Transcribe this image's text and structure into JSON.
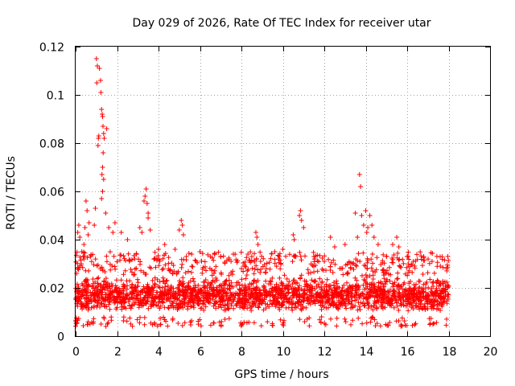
{
  "chart_data": {
    "type": "scatter",
    "title": "Day 029 of 2026, Rate Of TEC Index for receiver utar",
    "xlabel": "GPS time / hours",
    "ylabel": "ROTI / TECUs",
    "xlim": [
      0,
      20
    ],
    "ylim": [
      0,
      0.12
    ],
    "x_ticks": [
      0,
      2,
      4,
      6,
      8,
      10,
      12,
      14,
      16,
      18,
      20
    ],
    "x_tick_labels": [
      "0",
      "2",
      "4",
      "6",
      "8",
      "10",
      "12",
      "14",
      "16",
      "18",
      "20"
    ],
    "y_ticks": [
      0,
      0.02,
      0.04,
      0.06,
      0.08,
      0.1,
      0.12
    ],
    "y_tick_labels": [
      "0",
      "0.02",
      "0.04",
      "0.06",
      "0.08",
      "0.1",
      "0.12"
    ],
    "grid": true,
    "marker": "+",
    "color": "#ff0000",
    "series": [
      {
        "name": "ROTI",
        "data_range": [
          0,
          18
        ],
        "typical_band": [
          0.008,
          0.025
        ],
        "points": [
          [
            0.05,
            0.026
          ],
          [
            0.1,
            0.043
          ],
          [
            0.15,
            0.046
          ],
          [
            0.2,
            0.041
          ],
          [
            0.3,
            0.035
          ],
          [
            0.4,
            0.038
          ],
          [
            0.45,
            0.045
          ],
          [
            0.5,
            0.056
          ],
          [
            0.55,
            0.052
          ],
          [
            0.6,
            0.042
          ],
          [
            0.65,
            0.047
          ],
          [
            0.9,
            0.046
          ],
          [
            0.95,
            0.053
          ],
          [
            1.0,
            0.115
          ],
          [
            1.02,
            0.105
          ],
          [
            1.05,
            0.112
          ],
          [
            1.08,
            0.079
          ],
          [
            1.1,
            0.082
          ],
          [
            1.12,
            0.083
          ],
          [
            1.15,
            0.111
          ],
          [
            1.2,
            0.106
          ],
          [
            1.22,
            0.101
          ],
          [
            1.25,
            0.094
          ],
          [
            1.28,
            0.092
          ],
          [
            1.3,
            0.091
          ],
          [
            1.32,
            0.087
          ],
          [
            1.35,
            0.084
          ],
          [
            1.38,
            0.082
          ],
          [
            1.33,
            0.076
          ],
          [
            1.3,
            0.07
          ],
          [
            1.27,
            0.067
          ],
          [
            1.35,
            0.065
          ],
          [
            1.3,
            0.06
          ],
          [
            1.25,
            0.057
          ],
          [
            1.45,
            0.051
          ],
          [
            1.5,
            0.086
          ],
          [
            1.6,
            0.045
          ],
          [
            1.8,
            0.043
          ],
          [
            1.9,
            0.047
          ],
          [
            2.2,
            0.043
          ],
          [
            2.5,
            0.04
          ],
          [
            3.1,
            0.045
          ],
          [
            3.2,
            0.043
          ],
          [
            3.3,
            0.056
          ],
          [
            3.35,
            0.058
          ],
          [
            3.4,
            0.061
          ],
          [
            3.45,
            0.055
          ],
          [
            3.5,
            0.051
          ],
          [
            3.5,
            0.049
          ],
          [
            3.6,
            0.044
          ],
          [
            4.0,
            0.036
          ],
          [
            4.3,
            0.038
          ],
          [
            4.8,
            0.036
          ],
          [
            5.0,
            0.044
          ],
          [
            5.1,
            0.048
          ],
          [
            5.15,
            0.046
          ],
          [
            5.2,
            0.042
          ],
          [
            5.6,
            0.034
          ],
          [
            6.0,
            0.035
          ],
          [
            6.5,
            0.033
          ],
          [
            7.0,
            0.033
          ],
          [
            7.5,
            0.031
          ],
          [
            8.0,
            0.028
          ],
          [
            8.5,
            0.033
          ],
          [
            8.7,
            0.043
          ],
          [
            8.75,
            0.041
          ],
          [
            8.8,
            0.038
          ],
          [
            9.2,
            0.028
          ],
          [
            9.8,
            0.032
          ],
          [
            10.0,
            0.036
          ],
          [
            10.5,
            0.042
          ],
          [
            10.55,
            0.04
          ],
          [
            10.8,
            0.05
          ],
          [
            10.85,
            0.052
          ],
          [
            10.9,
            0.048
          ],
          [
            11.0,
            0.045
          ],
          [
            11.5,
            0.033
          ],
          [
            12.0,
            0.031
          ],
          [
            12.5,
            0.037
          ],
          [
            12.3,
            0.041
          ],
          [
            13.0,
            0.038
          ],
          [
            13.5,
            0.051
          ],
          [
            13.6,
            0.041
          ],
          [
            13.7,
            0.067
          ],
          [
            13.75,
            0.062
          ],
          [
            13.8,
            0.05
          ],
          [
            13.9,
            0.046
          ],
          [
            14.0,
            0.052
          ],
          [
            14.05,
            0.043
          ],
          [
            14.1,
            0.045
          ],
          [
            14.2,
            0.05
          ],
          [
            14.3,
            0.046
          ],
          [
            14.4,
            0.041
          ],
          [
            14.6,
            0.038
          ],
          [
            15.0,
            0.033
          ],
          [
            15.3,
            0.038
          ],
          [
            15.5,
            0.041
          ],
          [
            15.6,
            0.037
          ],
          [
            16.0,
            0.033
          ],
          [
            16.3,
            0.031
          ],
          [
            16.8,
            0.033
          ],
          [
            17.2,
            0.031
          ],
          [
            17.6,
            0.029
          ],
          [
            17.9,
            0.028
          ]
        ]
      }
    ]
  }
}
